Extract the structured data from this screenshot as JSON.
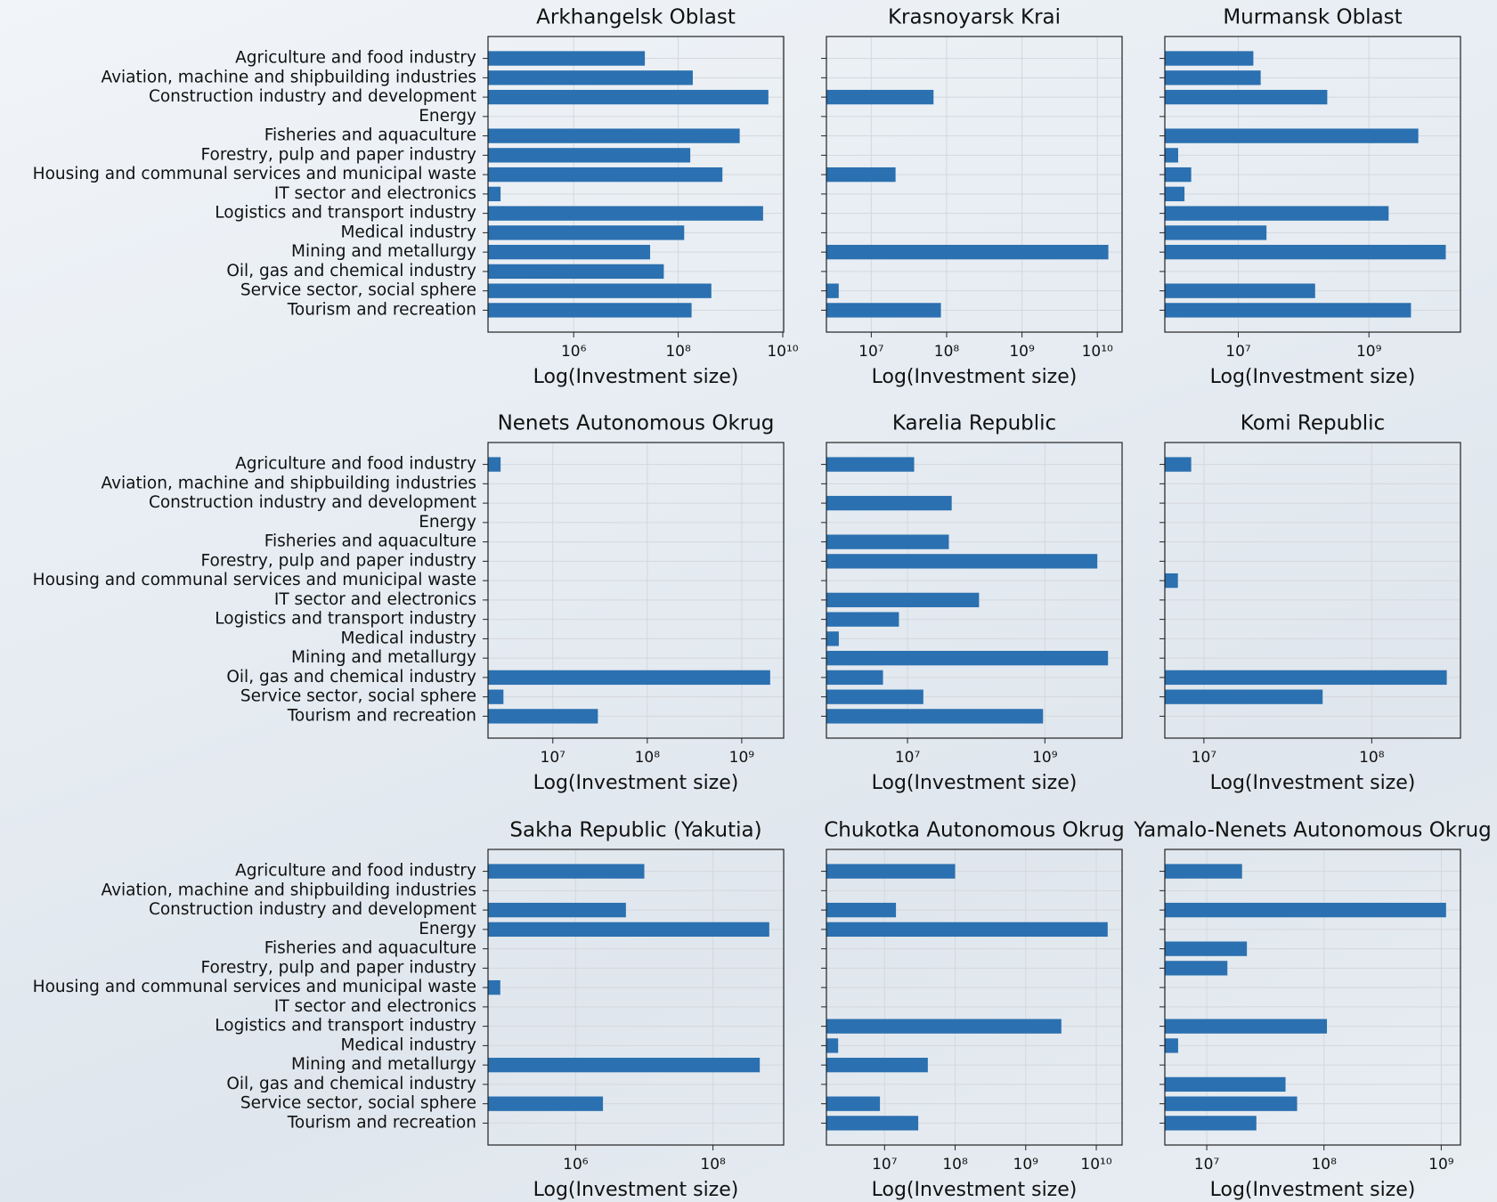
{
  "chart_data": [
    {
      "type": "barh",
      "title": "Arkhangelsk Oblast",
      "xlabel": "Log(Investment size)",
      "xscale": "log",
      "grid": true,
      "color": "#2b70b0",
      "categories": [
        "Agriculture and food industry",
        "Aviation, machine and shipbuilding industries",
        "Construction industry and development",
        "Energy",
        "Fisheries and aquaculture",
        "Forestry, pulp and paper industry",
        "Housing and communal services and municipal waste",
        "IT sector and electronics",
        "Logistics and transport industry",
        "Medical industry",
        "Mining and metallurgy",
        "Oil, gas and chemical industry",
        "Service sector, social sphere",
        "Tourism and recreation"
      ],
      "values": [
        23000000.0,
        190000000.0,
        5300000000.0,
        null,
        1500000000.0,
        170000000.0,
        700000000.0,
        40000.0,
        4200000000.0,
        130000000.0,
        29000000.0,
        53000000.0,
        430000000.0,
        180000000.0
      ],
      "xlim": [
        23000.0,
        10400000000.0
      ],
      "xticks": [
        {
          "value": 1000000.0,
          "label": "10⁶"
        },
        {
          "value": 100000000.0,
          "label": "10⁸"
        },
        {
          "value": 10000000000.0,
          "label": "10¹⁰"
        }
      ]
    },
    {
      "type": "barh",
      "title": "Krasnoyarsk Krai",
      "xlabel": "Log(Investment size)",
      "xscale": "log",
      "grid": true,
      "color": "#2b70b0",
      "values": [
        null,
        null,
        67000000.0,
        null,
        null,
        null,
        21000000.0,
        null,
        null,
        null,
        14000000000.0,
        null,
        3700000.0,
        84000000.0
      ],
      "xlim": [
        2540000.0,
        21300000000.0
      ],
      "xticks": [
        {
          "value": 10000000.0,
          "label": "10⁷"
        },
        {
          "value": 100000000.0,
          "label": "10⁸"
        },
        {
          "value": 1000000000.0,
          "label": "10⁹"
        },
        {
          "value": 10000000000.0,
          "label": "10¹⁰"
        }
      ]
    },
    {
      "type": "barh",
      "title": "Murmansk Oblast",
      "xlabel": "Log(Investment size)",
      "xscale": "log",
      "grid": true,
      "color": "#2b70b0",
      "values": [
        17000000.0,
        22000000.0,
        230000000.0,
        null,
        5700000000.0,
        1200000.0,
        1900000.0,
        1500000.0,
        2000000000.0,
        27000000.0,
        15000000000.0,
        null,
        150000000.0,
        4400000000.0
      ],
      "xlim": [
        750000.0,
        25200000000.0
      ],
      "xticks": [
        {
          "value": 10000000.0,
          "label": "10⁷"
        },
        {
          "value": 1000000000.0,
          "label": "10⁹"
        }
      ]
    },
    {
      "type": "barh",
      "title": "Nenets Autonomous Okrug",
      "xlabel": "Log(Investment size)",
      "xscale": "log",
      "grid": true,
      "color": "#2b70b0",
      "categories": [
        "Agriculture and food industry",
        "Aviation, machine and shipbuilding industries",
        "Construction industry and development",
        "Energy",
        "Fisheries and aquaculture",
        "Forestry, pulp and paper industry",
        "Housing and communal services and municipal waste",
        "IT sector and electronics",
        "Logistics and transport industry",
        "Medical industry",
        "Mining and metallurgy",
        "Oil, gas and chemical industry",
        "Service sector, social sphere",
        "Tourism and recreation"
      ],
      "values": [
        2800000.0,
        null,
        null,
        null,
        null,
        null,
        null,
        null,
        null,
        null,
        null,
        2000000000.0,
        3000000.0,
        30000000.0
      ],
      "xlim": [
        2060000.0,
        2780000000.0
      ],
      "xticks": [
        {
          "value": 10000000.0,
          "label": "10⁷"
        },
        {
          "value": 100000000.0,
          "label": "10⁸"
        },
        {
          "value": 1000000000.0,
          "label": "10⁹"
        }
      ]
    },
    {
      "type": "barh",
      "title": "Karelia Republic",
      "xlabel": "Log(Investment size)",
      "xscale": "log",
      "grid": true,
      "color": "#2b70b0",
      "values": [
        12500000.0,
        null,
        44000000.0,
        null,
        40000000.0,
        5800000000.0,
        null,
        110000000.0,
        7500000.0,
        1000000.0,
        8300000000.0,
        4400000.0,
        17000000.0,
        940000000.0
      ],
      "xlim": [
        660000.0,
        13300000000.0
      ],
      "xticks": [
        {
          "value": 10000000.0,
          "label": "10⁷"
        },
        {
          "value": 1000000000.0,
          "label": "10⁹"
        }
      ]
    },
    {
      "type": "barh",
      "title": "Komi Republic",
      "xlabel": "Log(Investment size)",
      "xscale": "log",
      "grid": true,
      "color": "#2b70b0",
      "values": [
        8400000.0,
        null,
        null,
        null,
        null,
        null,
        7000000.0,
        null,
        null,
        null,
        null,
        280000000.0,
        51000000.0,
        null
      ],
      "xlim": [
        5850000.0,
        338000000.0
      ],
      "xticks": [
        {
          "value": 10000000.0,
          "label": "10⁷"
        },
        {
          "value": 100000000.0,
          "label": "10⁸"
        }
      ]
    },
    {
      "type": "barh",
      "title": "Sakha Republic (Yakutia)",
      "xlabel": "Log(Investment size)",
      "xscale": "log",
      "grid": true,
      "color": "#2b70b0",
      "categories": [
        "Agriculture and food industry",
        "Aviation, machine and shipbuilding industries",
        "Construction industry and development",
        "Energy",
        "Fisheries and aquaculture",
        "Forestry, pulp and paper industry",
        "Housing and communal services and municipal waste",
        "IT sector and electronics",
        "Logistics and transport industry",
        "Medical industry",
        "Mining and metallurgy",
        "Oil, gas and chemical industry",
        "Service sector, social sphere",
        "Tourism and recreation"
      ],
      "values": [
        10000000.0,
        null,
        5400000.0,
        660000000.0,
        null,
        null,
        80000.0,
        null,
        null,
        null,
        480000000.0,
        null,
        2500000.0,
        null
      ],
      "xlim": [
        53000.0,
        1070000000.0
      ],
      "xticks": [
        {
          "value": 1000000.0,
          "label": "10⁶"
        },
        {
          "value": 100000000.0,
          "label": "10⁸"
        }
      ]
    },
    {
      "type": "barh",
      "title": "Chukotka Autonomous Okrug",
      "xlabel": "Log(Investment size)",
      "xscale": "log",
      "grid": true,
      "color": "#2b70b0",
      "values": [
        100000000.0,
        null,
        14500000.0,
        14500000000.0,
        null,
        null,
        null,
        null,
        3200000000.0,
        2200000.0,
        41000000.0,
        null,
        8600000.0,
        30000000.0
      ],
      "xlim": [
        1500000.0,
        23200000000.0
      ],
      "xticks": [
        {
          "value": 10000000.0,
          "label": "10⁷"
        },
        {
          "value": 100000000.0,
          "label": "10⁸"
        },
        {
          "value": 1000000000.0,
          "label": "10⁹"
        },
        {
          "value": 10000000000.0,
          "label": "10¹⁰"
        }
      ]
    },
    {
      "type": "barh",
      "title": "Yamalo-Nenets Autonomous Okrug",
      "xlabel": "Log(Investment size)",
      "xscale": "log",
      "grid": true,
      "color": "#2b70b0",
      "values": [
        20000000.0,
        null,
        1100000000.0,
        null,
        22000000.0,
        15000000.0,
        null,
        null,
        106000000.0,
        5700000.0,
        null,
        47000000.0,
        59000000.0,
        26500000.0
      ],
      "xlim": [
        4390000.0,
        1460000000.0
      ],
      "xticks": [
        {
          "value": 10000000.0,
          "label": "10⁷"
        },
        {
          "value": 100000000.0,
          "label": "10⁸"
        },
        {
          "value": 1000000000.0,
          "label": "10⁹"
        }
      ]
    }
  ]
}
